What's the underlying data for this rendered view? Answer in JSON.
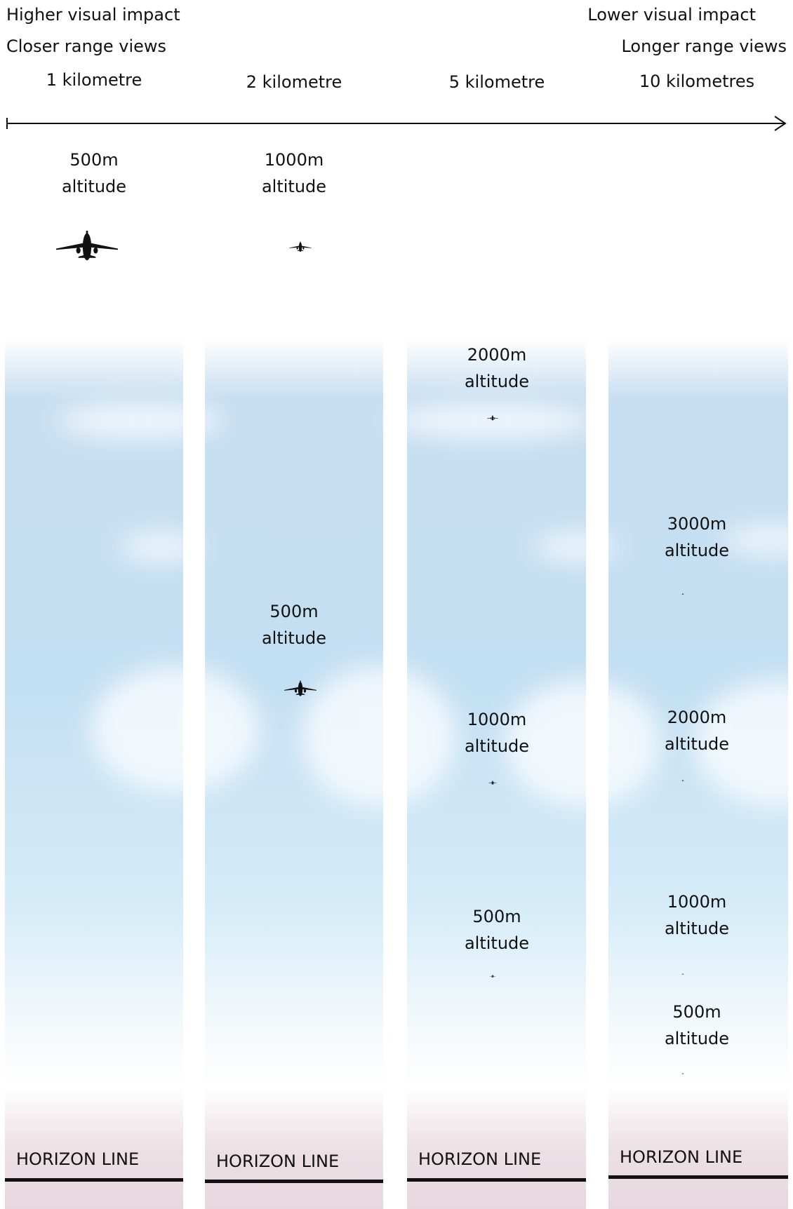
{
  "header": {
    "left": [
      "Higher visual impact",
      "Closer range views"
    ],
    "right": [
      "Lower visual impact",
      "Longer range views"
    ]
  },
  "columns": [
    {
      "distance": "1 kilometre",
      "planes": [
        {
          "label": [
            "500m",
            "altitude"
          ]
        }
      ],
      "horizon": "HORIZON LINE"
    },
    {
      "distance": "2 kilometre",
      "planes": [
        {
          "label": [
            "1000m",
            "altitude"
          ]
        },
        {
          "label": [
            "500m",
            "altitude"
          ]
        }
      ],
      "horizon": "HORIZON LINE"
    },
    {
      "distance": "5 kilometre",
      "planes": [
        {
          "label": [
            "2000m",
            "altitude"
          ]
        },
        {
          "label": [
            "1000m",
            "altitude"
          ]
        },
        {
          "label": [
            "500m",
            "altitude"
          ]
        }
      ],
      "horizon": "HORIZON LINE"
    },
    {
      "distance": "10 kilometres",
      "planes": [
        {
          "label": [
            "3000m",
            "altitude"
          ]
        },
        {
          "label": [
            "2000m",
            "altitude"
          ]
        },
        {
          "label": [
            "1000m",
            "altitude"
          ]
        },
        {
          "label": [
            "500m",
            "altitude"
          ]
        }
      ],
      "horizon": "HORIZON LINE"
    }
  ]
}
